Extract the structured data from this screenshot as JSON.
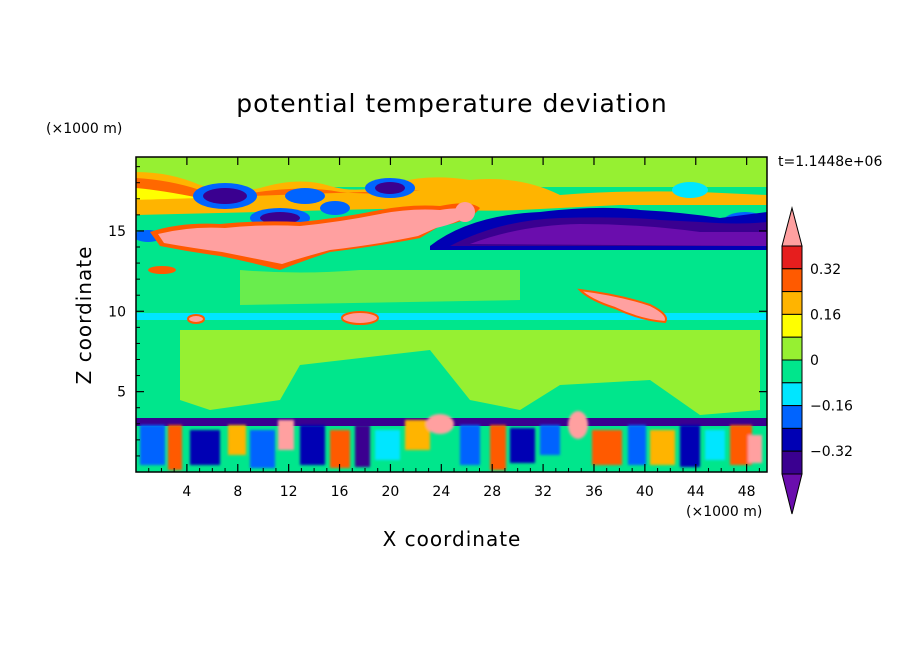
{
  "chart_data": {
    "type": "contour",
    "title": "potential temperature deviation",
    "xlabel": "X coordinate",
    "ylabel": "Z coordinate",
    "x_unit": "(×1000 m)",
    "y_unit": "(×1000 m)",
    "time_label": "t=1.1448e+06",
    "xlim": [
      0,
      49.6
    ],
    "ylim": [
      0,
      19.6
    ],
    "x_ticks": [
      4,
      8,
      12,
      16,
      20,
      24,
      28,
      32,
      36,
      40,
      44,
      48
    ],
    "y_ticks": [
      5,
      10,
      15
    ],
    "colorbar": {
      "labels": [
        "0.32",
        "0.16",
        "0",
        "−0.16",
        "−0.32"
      ],
      "label_levels": [
        0.32,
        0.16,
        0,
        -0.16,
        -0.32
      ],
      "levels": [
        -0.4,
        -0.32,
        -0.24,
        -0.16,
        -0.08,
        0,
        0.08,
        0.16,
        0.24,
        0.32,
        0.4
      ],
      "colors": [
        "#6a0dad",
        "#3a0090",
        "#0000b4",
        "#0064ff",
        "#00e6ff",
        "#00e68c",
        "#96f032",
        "#ffff00",
        "#ffb400",
        "#ff5a00",
        "#e61e1e",
        "#ffa0a0"
      ]
    }
  }
}
